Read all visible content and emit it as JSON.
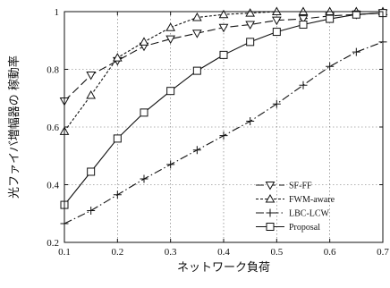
{
  "chart_data": {
    "type": "line",
    "xlabel": "ネットワーク負荷",
    "ylabel": "光ファイバ増幅器の 稼動率",
    "xlim": [
      0.1,
      0.7
    ],
    "ylim": [
      0.2,
      1.0
    ],
    "xticks": [
      "0.1",
      "0.2",
      "0.3",
      "0.4",
      "0.5",
      "0.6",
      "0.7"
    ],
    "yticks": [
      "0.2",
      "0.4",
      "0.6",
      "0.8",
      "1"
    ],
    "grid": true,
    "legend_position": "bottom-right",
    "series": [
      {
        "name": "SF-FF",
        "line_style": "long-dash",
        "marker": "triangle-down",
        "x": [
          0.1,
          0.15,
          0.2,
          0.25,
          0.3,
          0.35,
          0.4,
          0.45,
          0.5,
          0.55,
          0.6,
          0.65,
          0.7
        ],
        "values": [
          0.69,
          0.78,
          0.83,
          0.88,
          0.905,
          0.925,
          0.945,
          0.955,
          0.97,
          0.975,
          0.985,
          0.99,
          0.995
        ]
      },
      {
        "name": "FWM-aware",
        "line_style": "short-dash",
        "marker": "triangle-up",
        "x": [
          0.1,
          0.15,
          0.2,
          0.25,
          0.3,
          0.35,
          0.4,
          0.45,
          0.5,
          0.55,
          0.6,
          0.65,
          0.7
        ],
        "values": [
          0.585,
          0.71,
          0.84,
          0.895,
          0.945,
          0.98,
          0.99,
          0.995,
          1.0,
          1.0,
          1.0,
          1.0,
          1.0
        ]
      },
      {
        "name": "LBC-LCW",
        "line_style": "dash-dot",
        "marker": "plus",
        "x": [
          0.1,
          0.15,
          0.2,
          0.25,
          0.3,
          0.35,
          0.4,
          0.45,
          0.5,
          0.55,
          0.6,
          0.65,
          0.7
        ],
        "values": [
          0.265,
          0.31,
          0.365,
          0.42,
          0.47,
          0.52,
          0.57,
          0.62,
          0.68,
          0.745,
          0.81,
          0.86,
          0.895
        ]
      },
      {
        "name": "Proposal",
        "line_style": "solid",
        "marker": "square",
        "x": [
          0.1,
          0.15,
          0.2,
          0.25,
          0.3,
          0.35,
          0.4,
          0.45,
          0.5,
          0.55,
          0.6,
          0.65,
          0.7
        ],
        "values": [
          0.33,
          0.445,
          0.56,
          0.65,
          0.725,
          0.795,
          0.85,
          0.895,
          0.93,
          0.955,
          0.975,
          0.99,
          0.995
        ]
      }
    ]
  }
}
